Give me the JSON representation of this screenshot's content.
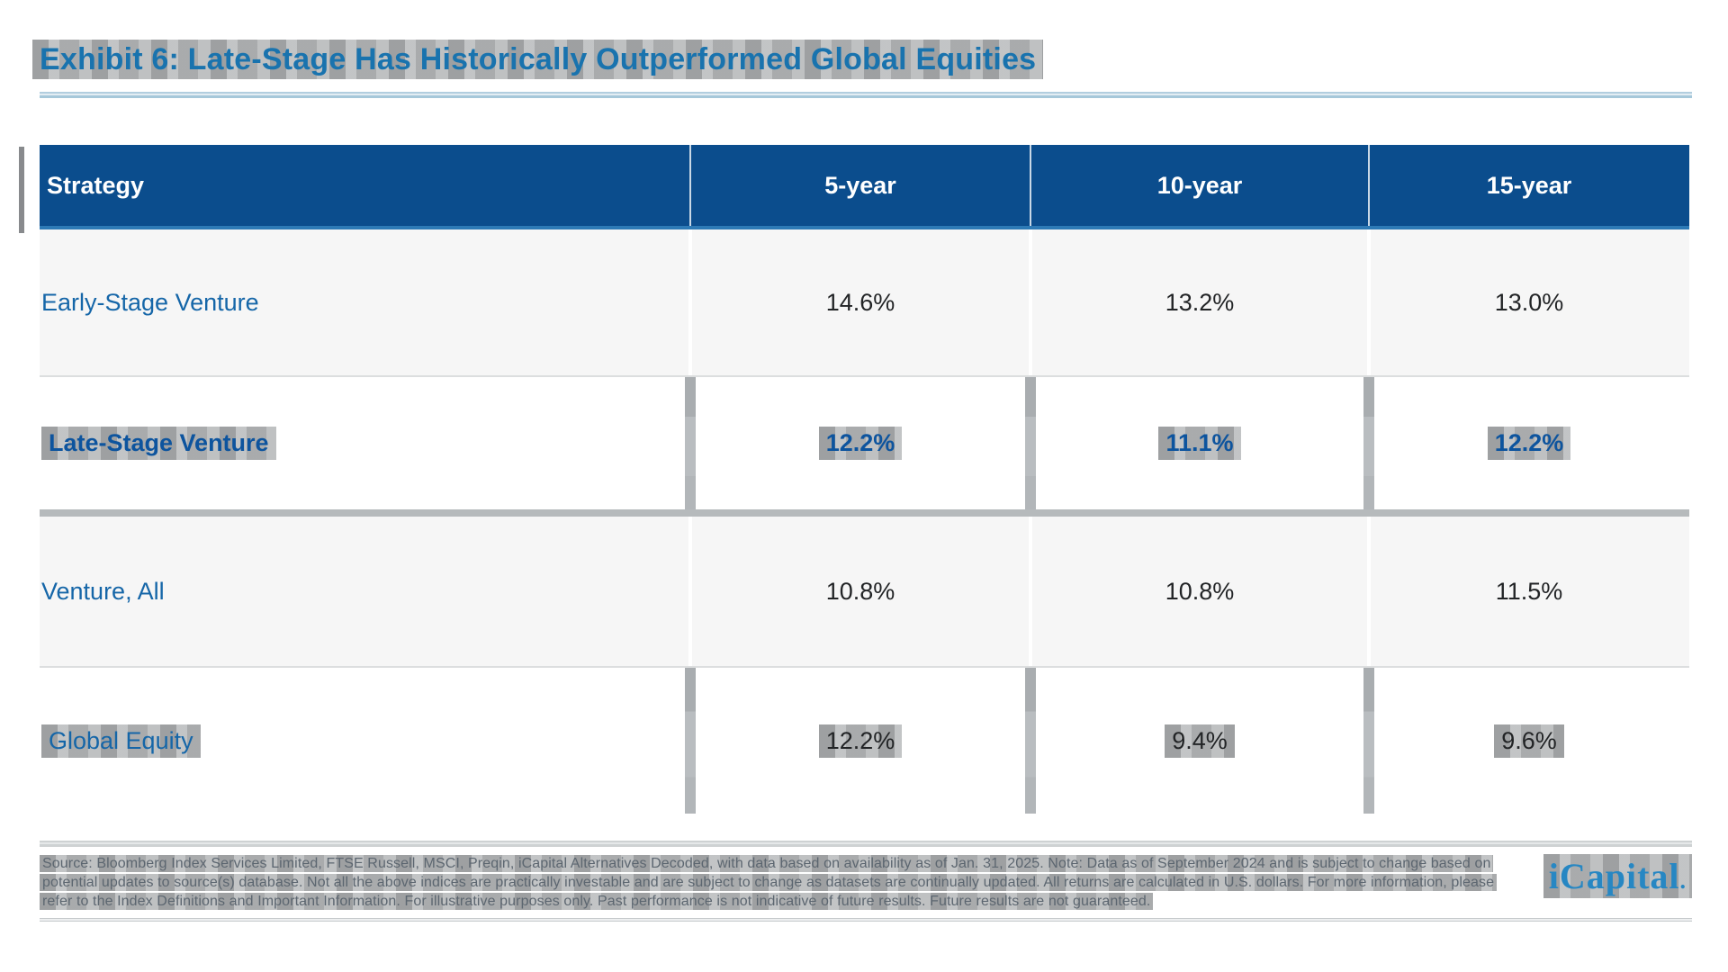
{
  "title": "Exhibit 6: Late-Stage Has Historically Outperformed Global Equities",
  "table": {
    "columns": [
      "Strategy",
      "5-year",
      "10-year",
      "15-year"
    ],
    "rows": [
      {
        "strategy": "Early-Stage Venture",
        "values": [
          "14.6%",
          "13.2%",
          "13.0%"
        ]
      },
      {
        "strategy": "Late-Stage Venture",
        "values": [
          "12.2%",
          "11.1%",
          "12.2%"
        ]
      },
      {
        "strategy": "Venture, All",
        "values": [
          "10.8%",
          "10.8%",
          "11.5%"
        ]
      },
      {
        "strategy": "Global Equity",
        "values": [
          "12.2%",
          "9.4%",
          "9.6%"
        ]
      }
    ]
  },
  "footnote": "Source: Bloomberg Index Services Limited, FTSE Russell, MSCI, Preqin, iCapital Alternatives Decoded, with data based on availability as of Jan. 31, 2025. Note: Data as of September 2024 and is subject to change based on potential updates to source(s) database. Not all the above indices are practically investable and are subject to change as datasets are continually updated. All returns are calculated in U.S. dollars. For more information, please refer to the Index Definitions and Important Information. For illustrative purposes only. Past performance is not indicative of future results. Future results are not guaranteed.",
  "logo": {
    "text": "iCapital",
    "mark": "."
  },
  "colors": {
    "header_bg": "#0B4D8D",
    "title_blue": "#1973AE",
    "label_blue": "#1566A8",
    "emphasis_blue": "#0D549E",
    "value_dark": "#222426",
    "row_alt_bg": "#F6F6F6",
    "rule_light_blue": "#A6C8DA",
    "footnote_gray": "#5C6670",
    "logo_blue": "#2787C3",
    "highlight_gray": "#7F8285"
  }
}
